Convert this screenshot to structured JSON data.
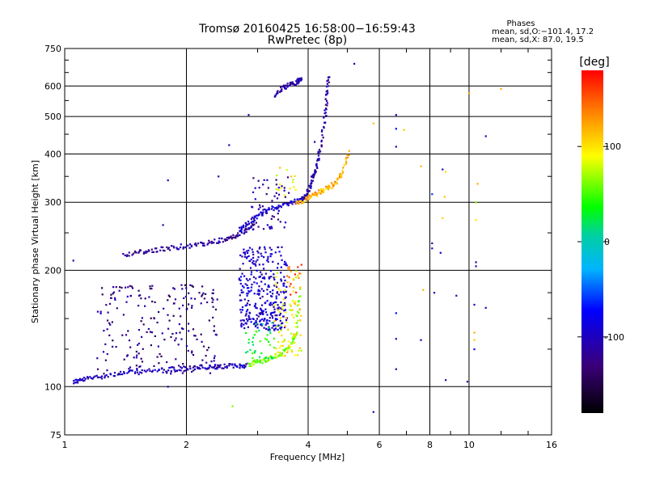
{
  "chart_data": {
    "type": "scatter",
    "title": "Tromsø 20160425 16:58:00−16:59:43",
    "subtitle": "RwPretec (8p)",
    "xlabel": "Frequency [MHz]",
    "ylabel": "Stationary phase Virtual Height [km]",
    "x_scale": "log",
    "y_scale": "log",
    "xlim": [
      1,
      16
    ],
    "ylim": [
      75,
      750
    ],
    "x_ticks": [
      1,
      2,
      4,
      6,
      8,
      10,
      16
    ],
    "y_ticks": [
      75,
      100,
      200,
      300,
      400,
      500,
      600,
      750
    ],
    "grid": true,
    "stats": {
      "heading": "Phases",
      "line1": "mean, sd,O:−101.4, 17.2",
      "line2": "mean, sd,X: 87.0, 19.5"
    },
    "colorbar": {
      "label": "[deg]",
      "ticks": [
        100,
        0,
        -100
      ],
      "range": [
        -180,
        180
      ]
    },
    "traces": [
      {
        "x": [
          1.05,
          1.1,
          1.2,
          1.35,
          1.5,
          1.7,
          1.9,
          2.1,
          2.3,
          2.5,
          2.7,
          2.85
        ],
        "y": [
          103,
          104,
          106,
          108,
          109,
          110,
          111,
          112,
          112,
          113,
          113,
          114
        ],
        "phase": -100,
        "jitter": 3
      },
      {
        "x": [
          1.4,
          1.55,
          1.7,
          1.9,
          2.1,
          2.3,
          2.5,
          2.65,
          2.8,
          2.95
        ],
        "y": [
          220,
          223,
          226,
          230,
          232,
          236,
          240,
          246,
          253,
          262
        ],
        "phase": -115,
        "jitter": 3
      },
      {
        "x": [
          2.7,
          2.85,
          3.0,
          3.2,
          3.45,
          3.7,
          3.85
        ],
        "y": [
          255,
          265,
          278,
          287,
          295,
          301,
          306
        ],
        "phase": -90,
        "jitter": 3
      },
      {
        "x": [
          3.75,
          3.9,
          4.05,
          4.25,
          4.45,
          4.65,
          4.85,
          5.05
        ],
        "y": [
          300,
          303,
          310,
          318,
          325,
          335,
          355,
          410
        ],
        "phase": 120,
        "jitter": 3
      },
      {
        "x": [
          3.85,
          4.0,
          4.1,
          4.2,
          4.3,
          4.4,
          4.45,
          4.5
        ],
        "y": [
          305,
          320,
          345,
          370,
          420,
          500,
          570,
          640
        ],
        "phase": -110,
        "jitter": 3
      },
      {
        "x": [
          3.3,
          3.45,
          3.6,
          3.75,
          3.85
        ],
        "y": [
          570,
          590,
          605,
          615,
          625
        ],
        "phase": -110,
        "jitter": 3
      },
      {
        "x": [
          2.85,
          3.0,
          3.2,
          3.4,
          3.6,
          3.75,
          3.82
        ],
        "y": [
          114,
          116,
          118,
          121,
          126,
          140,
          180
        ],
        "phase": 60,
        "jitter": 3
      }
    ],
    "clusters": [
      {
        "x": [
          1.2,
          2.4
        ],
        "y": [
          108,
          185
        ],
        "count": 230,
        "phase": -125
      },
      {
        "x": [
          2.7,
          3.55
        ],
        "y": [
          140,
          230
        ],
        "count": 330,
        "phase": -95
      },
      {
        "x": [
          3.3,
          3.85
        ],
        "y": [
          120,
          200
        ],
        "count": 90,
        "phase": 95
      },
      {
        "x": [
          2.8,
          3.3
        ],
        "y": [
          118,
          150
        ],
        "count": 40,
        "phase": 30
      },
      {
        "x": [
          3.55,
          3.85
        ],
        "y": [
          170,
          210
        ],
        "count": 15,
        "phase": 150
      },
      {
        "x": [
          2.9,
          3.6
        ],
        "y": [
          255,
          350
        ],
        "count": 60,
        "phase": -110
      },
      {
        "x": [
          3.3,
          3.75
        ],
        "y": [
          310,
          370
        ],
        "count": 15,
        "phase": 95
      }
    ],
    "points": [
      {
        "x": 1.05,
        "y": 212,
        "phase": -110
      },
      {
        "x": 1.8,
        "y": 342,
        "phase": -100
      },
      {
        "x": 1.75,
        "y": 262,
        "phase": -115
      },
      {
        "x": 2.55,
        "y": 422,
        "phase": -110
      },
      {
        "x": 2.85,
        "y": 505,
        "phase": -105
      },
      {
        "x": 2.4,
        "y": 350,
        "phase": -110
      },
      {
        "x": 5.2,
        "y": 685,
        "phase": -110
      },
      {
        "x": 4.15,
        "y": 430,
        "phase": -100
      },
      {
        "x": 5.8,
        "y": 480,
        "phase": 115
      },
      {
        "x": 6.6,
        "y": 505,
        "phase": -100
      },
      {
        "x": 6.6,
        "y": 465,
        "phase": -70
      },
      {
        "x": 6.9,
        "y": 462,
        "phase": 110
      },
      {
        "x": 6.6,
        "y": 418,
        "phase": -105
      },
      {
        "x": 7.6,
        "y": 372,
        "phase": 115
      },
      {
        "x": 8.1,
        "y": 315,
        "phase": -60
      },
      {
        "x": 8.6,
        "y": 365,
        "phase": -110
      },
      {
        "x": 8.75,
        "y": 360,
        "phase": 100
      },
      {
        "x": 8.7,
        "y": 310,
        "phase": 110
      },
      {
        "x": 8.6,
        "y": 273,
        "phase": 105
      },
      {
        "x": 8.1,
        "y": 235,
        "phase": -110
      },
      {
        "x": 8.1,
        "y": 228,
        "phase": -110
      },
      {
        "x": 8.5,
        "y": 222,
        "phase": -90
      },
      {
        "x": 10.5,
        "y": 335,
        "phase": 120
      },
      {
        "x": 10.4,
        "y": 300,
        "phase": 60
      },
      {
        "x": 10.4,
        "y": 270,
        "phase": 100
      },
      {
        "x": 10.4,
        "y": 210,
        "phase": -110
      },
      {
        "x": 10.4,
        "y": 205,
        "phase": -100
      },
      {
        "x": 11.0,
        "y": 445,
        "phase": -110
      },
      {
        "x": 10.0,
        "y": 575,
        "phase": 120
      },
      {
        "x": 12.0,
        "y": 590,
        "phase": 120
      },
      {
        "x": 7.7,
        "y": 178,
        "phase": 120
      },
      {
        "x": 8.2,
        "y": 175,
        "phase": -110
      },
      {
        "x": 6.6,
        "y": 155,
        "phase": -70
      },
      {
        "x": 6.6,
        "y": 133,
        "phase": -100
      },
      {
        "x": 7.6,
        "y": 132,
        "phase": -110
      },
      {
        "x": 9.3,
        "y": 172,
        "phase": -110
      },
      {
        "x": 10.3,
        "y": 163,
        "phase": -100
      },
      {
        "x": 11.0,
        "y": 160,
        "phase": -110
      },
      {
        "x": 10.3,
        "y": 138,
        "phase": 120
      },
      {
        "x": 10.3,
        "y": 132,
        "phase": 110
      },
      {
        "x": 10.3,
        "y": 125,
        "phase": -70
      },
      {
        "x": 6.6,
        "y": 111,
        "phase": -110
      },
      {
        "x": 8.75,
        "y": 104,
        "phase": -110
      },
      {
        "x": 9.9,
        "y": 103,
        "phase": -110
      },
      {
        "x": 5.8,
        "y": 86,
        "phase": -110
      },
      {
        "x": 2.6,
        "y": 89,
        "phase": 60
      },
      {
        "x": 1.8,
        "y": 100,
        "phase": -110
      }
    ]
  }
}
